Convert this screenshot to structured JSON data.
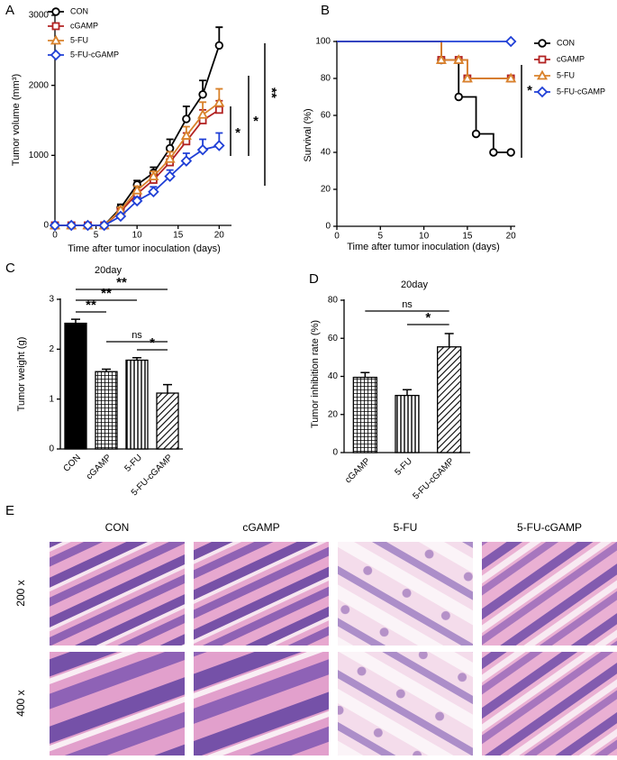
{
  "chart_data": [
    {
      "panel": "A",
      "type": "line",
      "xlabel": "Time after tumor inoculation (days)",
      "ylabel": "Tumor volume (mm³)",
      "x": [
        0,
        2,
        4,
        6,
        8,
        10,
        12,
        14,
        16,
        18,
        20
      ],
      "xlim": [
        0,
        21.5
      ],
      "xticks": [
        0,
        5,
        10,
        15,
        20
      ],
      "ylim": [
        0,
        3000
      ],
      "yticks": [
        0,
        1000,
        2000,
        3000
      ],
      "legend": "upper left",
      "series": [
        {
          "name": "CON",
          "color": "#000000",
          "marker": "circle",
          "values": [
            0,
            0,
            0,
            0,
            250,
            580,
            750,
            1100,
            1520,
            1870,
            2570
          ],
          "errors": [
            0,
            0,
            0,
            0,
            50,
            60,
            80,
            130,
            180,
            200,
            260
          ]
        },
        {
          "name": "cGAMP",
          "color": "#b22222",
          "marker": "square",
          "values": [
            0,
            0,
            0,
            0,
            200,
            450,
            650,
            900,
            1200,
            1500,
            1650
          ],
          "errors": [
            0,
            0,
            0,
            0,
            40,
            50,
            70,
            90,
            120,
            150,
            130
          ]
        },
        {
          "name": "5-FU",
          "color": "#d9822b",
          "marker": "triangle",
          "values": [
            0,
            0,
            0,
            0,
            220,
            500,
            700,
            950,
            1280,
            1580,
            1750
          ],
          "errors": [
            0,
            0,
            0,
            0,
            40,
            60,
            70,
            100,
            130,
            180,
            200
          ]
        },
        {
          "name": "5-FU-cGAMP",
          "color": "#1f3fd6",
          "marker": "diamond",
          "values": [
            0,
            0,
            0,
            0,
            130,
            350,
            480,
            700,
            920,
            1080,
            1140
          ],
          "errors": [
            0,
            0,
            0,
            0,
            30,
            50,
            70,
            90,
            110,
            150,
            180
          ]
        }
      ],
      "annotations": [
        "*",
        "*",
        "**"
      ]
    },
    {
      "panel": "B",
      "type": "step",
      "xlabel": "Time after tumor inoculation (days)",
      "ylabel": "Survival (%)",
      "xlim": [
        0,
        20.5
      ],
      "xticks": [
        0,
        5,
        10,
        15,
        20
      ],
      "ylim": [
        0,
        100
      ],
      "yticks": [
        0,
        20,
        40,
        60,
        80,
        100
      ],
      "legend": "outside right",
      "series": [
        {
          "name": "CON",
          "color": "#000000",
          "marker": "circle",
          "x": [
            0,
            12,
            14,
            16,
            18,
            20
          ],
          "values": [
            100,
            90,
            70,
            50,
            40,
            40
          ]
        },
        {
          "name": "cGAMP",
          "color": "#b22222",
          "marker": "square",
          "x": [
            0,
            12,
            14,
            15,
            20
          ],
          "values": [
            100,
            90,
            90,
            80,
            80
          ]
        },
        {
          "name": "5-FU",
          "color": "#d9822b",
          "marker": "triangle",
          "x": [
            0,
            12,
            14,
            15,
            20
          ],
          "values": [
            100,
            90,
            90,
            80,
            80
          ]
        },
        {
          "name": "5-FU-cGAMP",
          "color": "#1f3fd6",
          "marker": "diamond",
          "x": [
            0,
            20
          ],
          "values": [
            100,
            100
          ]
        }
      ],
      "annotations": [
        "*"
      ]
    },
    {
      "panel": "C",
      "type": "bar",
      "title": "20day",
      "ylabel": "Tumor weight (g)",
      "categories": [
        "CON",
        "cGAMP",
        "5-FU",
        "5-FU-cGAMP"
      ],
      "values": [
        2.52,
        1.55,
        1.78,
        1.12
      ],
      "errors": [
        0.08,
        0.05,
        0.05,
        0.17
      ],
      "fills": [
        "solid",
        "grid",
        "vertical",
        "diagonal"
      ],
      "color": "#000000",
      "ylim": [
        0,
        3
      ],
      "yticks": [
        0,
        1,
        2,
        3
      ],
      "annotations": [
        "**",
        "**",
        "**",
        "ns",
        "*"
      ]
    },
    {
      "panel": "D",
      "type": "bar",
      "title": "20day",
      "ylabel": "Tumor inhibition rate (%)",
      "categories": [
        "cGAMP",
        "5-FU",
        "5-FU-cGAMP"
      ],
      "values": [
        39.5,
        30,
        55.5
      ],
      "errors": [
        2.5,
        3,
        7
      ],
      "fills": [
        "grid",
        "vertical",
        "diagonal"
      ],
      "color": "#000000",
      "ylim": [
        0,
        80
      ],
      "yticks": [
        0,
        20,
        40,
        60,
        80
      ],
      "annotations": [
        "ns",
        "*"
      ]
    }
  ],
  "histology": {
    "panel": "E",
    "columns": [
      "CON",
      "cGAMP",
      "5-FU",
      "5-FU-cGAMP"
    ],
    "rows": [
      "200 x",
      "400 x"
    ]
  }
}
